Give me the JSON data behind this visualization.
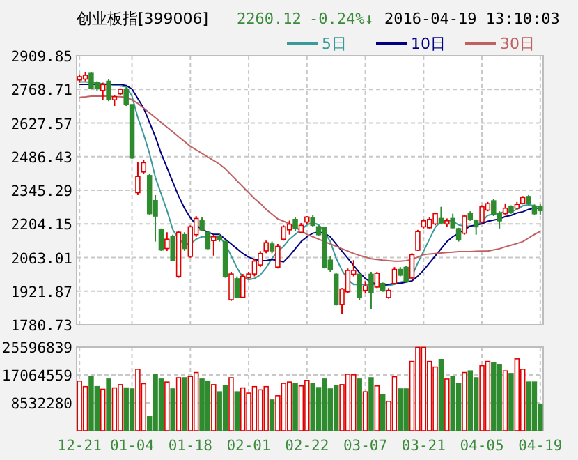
{
  "chart_data": [
    {
      "type": "candlestick",
      "title": "创业板指[399006]",
      "annotations": [
        "2260.12",
        "-0.24%↓",
        "2016-04-19 13:10:03"
      ],
      "categories": [
        null,
        null,
        null,
        null,
        null,
        null,
        null,
        null,
        null,
        null,
        null,
        null,
        null,
        null,
        null,
        null,
        null,
        null,
        null,
        null,
        null,
        null,
        null,
        null,
        null,
        null,
        null,
        null,
        null,
        null,
        null,
        null,
        null,
        null,
        null,
        null,
        null,
        null,
        null,
        null,
        null,
        null,
        null,
        null,
        null,
        null,
        null,
        null,
        null,
        null,
        null,
        null,
        null,
        null,
        null,
        null,
        null,
        null,
        null,
        null,
        null,
        null,
        null,
        null,
        null,
        null,
        null,
        null,
        null,
        null,
        null,
        null,
        null,
        null,
        null,
        null,
        null,
        null,
        null,
        null
      ],
      "ohlc": [
        [
          2808,
          2832,
          2797,
          2822
        ],
        [
          2812,
          2840,
          2803,
          2828
        ],
        [
          2836,
          2842,
          2769,
          2773
        ],
        [
          2797,
          2803,
          2764,
          2773
        ],
        [
          2764,
          2797,
          2725,
          2789
        ],
        [
          2803,
          2812,
          2719,
          2725
        ],
        [
          2725,
          2744,
          2699,
          2738
        ],
        [
          2750,
          2773,
          2744,
          2769
        ],
        [
          2769,
          2777,
          2699,
          2705
        ],
        [
          2705,
          2705,
          2477,
          2481
        ],
        [
          2335,
          2465,
          2325,
          2403
        ],
        [
          2422,
          2471,
          2413,
          2461
        ],
        [
          2407,
          2413,
          2243,
          2247
        ],
        [
          2302,
          2325,
          2130,
          2237
        ],
        [
          2179,
          2185,
          2091,
          2095
        ],
        [
          2101,
          2169,
          2091,
          2140
        ],
        [
          2150,
          2159,
          2048,
          2052
        ],
        [
          1984,
          2173,
          1978,
          2169
        ],
        [
          2159,
          2169,
          2091,
          2101
        ],
        [
          2068,
          2198,
          2062,
          2192
        ],
        [
          2159,
          2237,
          2150,
          2227
        ],
        [
          2217,
          2231,
          2173,
          2179
        ],
        [
          2169,
          2173,
          2095,
          2101
        ],
        [
          2134,
          2159,
          2071,
          2150
        ],
        [
          2150,
          2163,
          2130,
          2140
        ],
        [
          2130,
          2134,
          1978,
          1984
        ],
        [
          1886,
          2003,
          1881,
          1994
        ],
        [
          1974,
          1984,
          1892,
          1896
        ],
        [
          1896,
          1994,
          1892,
          1984
        ],
        [
          1978,
          2003,
          1974,
          1994
        ],
        [
          1994,
          2056,
          1984,
          2048
        ],
        [
          2032,
          2090,
          2023,
          2080
        ],
        [
          2091,
          2134,
          2081,
          2125
        ],
        [
          2120,
          2130,
          2081,
          2091
        ],
        [
          2023,
          2120,
          2017,
          2110
        ],
        [
          2140,
          2198,
          2134,
          2192
        ],
        [
          2179,
          2218,
          2159,
          2203
        ],
        [
          2223,
          2231,
          2173,
          2184
        ],
        [
          2169,
          2208,
          2165,
          2198
        ],
        [
          2212,
          2237,
          2204,
          2233
        ],
        [
          2231,
          2243,
          2193,
          2198
        ],
        [
          2192,
          2198,
          2153,
          2159
        ],
        [
          2188,
          2192,
          2017,
          2022
        ],
        [
          2052,
          2068,
          2003,
          2013
        ],
        [
          1993,
          1997,
          1861,
          1866
        ],
        [
          1866,
          1935,
          1827,
          1931
        ],
        [
          1919,
          2017,
          1915,
          2009
        ],
        [
          1993,
          2052,
          1984,
          2009
        ],
        [
          1993,
          1997,
          1886,
          1895
        ],
        [
          1925,
          1964,
          1915,
          1944
        ],
        [
          1993,
          2003,
          1847,
          1915
        ],
        [
          1939,
          2003,
          1935,
          1997
        ],
        [
          1954,
          1958,
          1919,
          1925
        ],
        [
          1895,
          1935,
          1890,
          1925
        ],
        [
          1954,
          2023,
          1950,
          2013
        ],
        [
          2013,
          2023,
          1984,
          1989
        ],
        [
          2022,
          2029,
          1958,
          1963
        ],
        [
          1977,
          2081,
          1974,
          2075
        ],
        [
          2094,
          2179,
          2091,
          2172
        ],
        [
          2192,
          2224,
          2185,
          2217
        ],
        [
          2188,
          2231,
          2185,
          2223
        ],
        [
          2204,
          2251,
          2198,
          2247
        ],
        [
          2227,
          2276,
          2204,
          2208
        ],
        [
          2204,
          2227,
          2192,
          2217
        ],
        [
          2227,
          2247,
          2185,
          2188
        ],
        [
          2184,
          2188,
          2130,
          2139
        ],
        [
          2165,
          2243,
          2159,
          2237
        ],
        [
          2247,
          2257,
          2217,
          2223
        ],
        [
          2217,
          2223,
          2159,
          2192
        ],
        [
          2212,
          2282,
          2208,
          2276
        ],
        [
          2262,
          2296,
          2257,
          2289
        ],
        [
          2301,
          2309,
          2237,
          2243
        ],
        [
          2247,
          2257,
          2185,
          2217
        ],
        [
          2247,
          2290,
          2243,
          2270
        ],
        [
          2276,
          2282,
          2247,
          2251
        ],
        [
          2270,
          2296,
          2266,
          2286
        ],
        [
          2290,
          2321,
          2286,
          2315
        ],
        [
          2319,
          2325,
          2282,
          2290
        ],
        [
          2276,
          2286,
          2243,
          2247
        ],
        [
          2276,
          2286,
          2243,
          2260
        ]
      ],
      "colors": [
        "#e00000",
        "#e00000",
        "#2e8b2e",
        "#2e8b2e",
        "#e00000",
        "#2e8b2e",
        "#e00000",
        "#e00000",
        "#2e8b2e",
        "#2e8b2e",
        "#e00000",
        "#e00000",
        "#2e8b2e",
        "#2e8b2e",
        "#2e8b2e",
        "#e00000",
        "#2e8b2e",
        "#e00000",
        "#2e8b2e",
        "#e00000",
        "#e00000",
        "#2e8b2e",
        "#2e8b2e",
        "#e00000",
        "#2e8b2e",
        "#2e8b2e",
        "#e00000",
        "#2e8b2e",
        "#e00000",
        "#e00000",
        "#e00000",
        "#e00000",
        "#e00000",
        "#2e8b2e",
        "#e00000",
        "#e00000",
        "#e00000",
        "#2e8b2e",
        "#e00000",
        "#e00000",
        "#2e8b2e",
        "#2e8b2e",
        "#2e8b2e",
        "#2e8b2e",
        "#2e8b2e",
        "#e00000",
        "#e00000",
        "#e00000",
        "#2e8b2e",
        "#e00000",
        "#2e8b2e",
        "#e00000",
        "#2e8b2e",
        "#e00000",
        "#e00000",
        "#2e8b2e",
        "#2e8b2e",
        "#e00000",
        "#e00000",
        "#e00000",
        "#e00000",
        "#e00000",
        "#2e8b2e",
        "#e00000",
        "#2e8b2e",
        "#2e8b2e",
        "#e00000",
        "#2e8b2e",
        "#2e8b2e",
        "#e00000",
        "#e00000",
        "#2e8b2e",
        "#2e8b2e",
        "#e00000",
        "#2e8b2e",
        "#e00000",
        "#e00000",
        "#2e8b2e",
        "#2e8b2e",
        "#2e8b2e"
      ],
      "series": [
        {
          "name": "5日",
          "type": "line",
          "color": "#3a9a9a",
          "values": [
            2800,
            2800,
            2798,
            2795,
            2792,
            2790,
            2786,
            2783,
            2780,
            2740,
            2650,
            2580,
            2500,
            2400,
            2330,
            2260,
            2180,
            2140,
            2120,
            2120,
            2140,
            2150,
            2150,
            2150,
            2150,
            2120,
            2070,
            2020,
            1980,
            1970,
            1975,
            1990,
            2020,
            2060,
            2090,
            2110,
            2140,
            2160,
            2180,
            2200,
            2210,
            2200,
            2170,
            2130,
            2060,
            2010,
            1970,
            1950,
            1950,
            1950,
            1950,
            1950,
            1950,
            1945,
            1950,
            1960,
            1965,
            1985,
            2040,
            2090,
            2140,
            2190,
            2215,
            2220,
            2215,
            2200,
            2195,
            2195,
            2195,
            2215,
            2240,
            2245,
            2250,
            2255,
            2255,
            2265,
            2280,
            2285,
            2280,
            2275
          ]
        },
        {
          "name": "10日",
          "type": "line",
          "color": "#000080",
          "values": [
            2790,
            2790,
            2790,
            2790,
            2790,
            2790,
            2790,
            2790,
            2785,
            2770,
            2730,
            2690,
            2630,
            2570,
            2500,
            2440,
            2380,
            2320,
            2270,
            2230,
            2200,
            2180,
            2170,
            2160,
            2160,
            2140,
            2120,
            2100,
            2080,
            2065,
            2055,
            2050,
            2050,
            2055,
            2050,
            2045,
            2070,
            2100,
            2130,
            2150,
            2165,
            2170,
            2165,
            2150,
            2120,
            2090,
            2060,
            2030,
            2000,
            1975,
            1960,
            1950,
            1945,
            1950,
            1955,
            1955,
            1960,
            1965,
            1985,
            2010,
            2040,
            2070,
            2100,
            2130,
            2150,
            2165,
            2180,
            2195,
            2200,
            2205,
            2215,
            2220,
            2225,
            2235,
            2240,
            2250,
            2255,
            2265,
            2270,
            2270
          ]
        },
        {
          "name": "30日",
          "type": "line",
          "color": "#c06060",
          "values": [
            2735,
            2737,
            2740,
            2740,
            2740,
            2740,
            2738,
            2738,
            2735,
            2725,
            2710,
            2690,
            2670,
            2650,
            2630,
            2610,
            2590,
            2570,
            2550,
            2530,
            2515,
            2500,
            2485,
            2470,
            2455,
            2435,
            2410,
            2385,
            2360,
            2335,
            2310,
            2290,
            2265,
            2245,
            2225,
            2215,
            2205,
            2190,
            2175,
            2160,
            2150,
            2140,
            2130,
            2120,
            2110,
            2100,
            2090,
            2080,
            2072,
            2065,
            2058,
            2055,
            2052,
            2050,
            2048,
            2048,
            2050,
            2055,
            2065,
            2075,
            2078,
            2080,
            2082,
            2084,
            2086,
            2088,
            2088,
            2088,
            2089,
            2090,
            2090,
            2095,
            2100,
            2108,
            2115,
            2122,
            2130,
            2145,
            2160,
            2173
          ]
        }
      ],
      "ylim": [
        1780.73,
        2909.85
      ],
      "yticks": [
        1780.73,
        1921.87,
        2063.01,
        2204.15,
        2345.29,
        2486.43,
        2627.57,
        2768.71,
        2909.85
      ],
      "grid": true,
      "legend": "top right",
      "tick_labels": "y"
    },
    {
      "type": "bar",
      "categories": [
        "12-21",
        null,
        null,
        null,
        null,
        null,
        null,
        null,
        null,
        "01-04",
        null,
        null,
        null,
        null,
        null,
        null,
        null,
        null,
        null,
        "01-18",
        null,
        null,
        null,
        null,
        null,
        null,
        null,
        null,
        null,
        "02-01",
        null,
        null,
        null,
        null,
        null,
        null,
        null,
        null,
        null,
        "02-22",
        null,
        null,
        null,
        null,
        null,
        null,
        null,
        null,
        null,
        "03-07",
        null,
        null,
        null,
        null,
        null,
        null,
        null,
        null,
        null,
        "03-21",
        null,
        null,
        null,
        null,
        null,
        null,
        null,
        null,
        null,
        "04-05",
        null,
        null,
        null,
        null,
        null,
        null,
        null,
        null,
        null,
        "04-19"
      ],
      "values": [
        15200000,
        13500000,
        16600000,
        13500000,
        12700000,
        15800000,
        13100000,
        14100000,
        13100000,
        12800000,
        18800000,
        14400000,
        4300000,
        17100000,
        15800000,
        14900000,
        12800000,
        16200000,
        16200000,
        16600000,
        17800000,
        15800000,
        15200000,
        14100000,
        11900000,
        13700000,
        16200000,
        11900000,
        13100000,
        11500000,
        13500000,
        12500000,
        13500000,
        9400000,
        10700000,
        14500000,
        14900000,
        14500000,
        13700000,
        15400000,
        14500000,
        13200000,
        15800000,
        12800000,
        13700000,
        14100000,
        17300000,
        17100000,
        15800000,
        11900000,
        16200000,
        13700000,
        11100000,
        9000000,
        16500000,
        12800000,
        12800000,
        21200000,
        25500000,
        25500000,
        21200000,
        19500000,
        21800000,
        15800000,
        16600000,
        14500000,
        17800000,
        18300000,
        16200000,
        19900000,
        21200000,
        20900000,
        20300000,
        18300000,
        17500000,
        22000000,
        18800000,
        14900000,
        14900000,
        8100000
      ],
      "colors": [
        "#e00000",
        "#e00000",
        "#2e8b2e",
        "#2e8b2e",
        "#e00000",
        "#2e8b2e",
        "#e00000",
        "#e00000",
        "#2e8b2e",
        "#2e8b2e",
        "#e00000",
        "#e00000",
        "#2e8b2e",
        "#2e8b2e",
        "#2e8b2e",
        "#e00000",
        "#2e8b2e",
        "#e00000",
        "#2e8b2e",
        "#e00000",
        "#e00000",
        "#2e8b2e",
        "#2e8b2e",
        "#e00000",
        "#2e8b2e",
        "#2e8b2e",
        "#e00000",
        "#2e8b2e",
        "#e00000",
        "#e00000",
        "#e00000",
        "#e00000",
        "#e00000",
        "#2e8b2e",
        "#e00000",
        "#e00000",
        "#e00000",
        "#2e8b2e",
        "#e00000",
        "#e00000",
        "#2e8b2e",
        "#2e8b2e",
        "#2e8b2e",
        "#2e8b2e",
        "#2e8b2e",
        "#e00000",
        "#e00000",
        "#e00000",
        "#2e8b2e",
        "#e00000",
        "#2e8b2e",
        "#e00000",
        "#2e8b2e",
        "#e00000",
        "#e00000",
        "#2e8b2e",
        "#2e8b2e",
        "#e00000",
        "#e00000",
        "#e00000",
        "#e00000",
        "#e00000",
        "#2e8b2e",
        "#e00000",
        "#2e8b2e",
        "#2e8b2e",
        "#e00000",
        "#2e8b2e",
        "#2e8b2e",
        "#e00000",
        "#e00000",
        "#2e8b2e",
        "#2e8b2e",
        "#e00000",
        "#2e8b2e",
        "#e00000",
        "#e00000",
        "#2e8b2e",
        "#2e8b2e",
        "#2e8b2e"
      ],
      "ylim": [
        0,
        25596839
      ],
      "yticks": [
        8532280,
        17064559,
        25596839
      ],
      "grid": true
    }
  ]
}
